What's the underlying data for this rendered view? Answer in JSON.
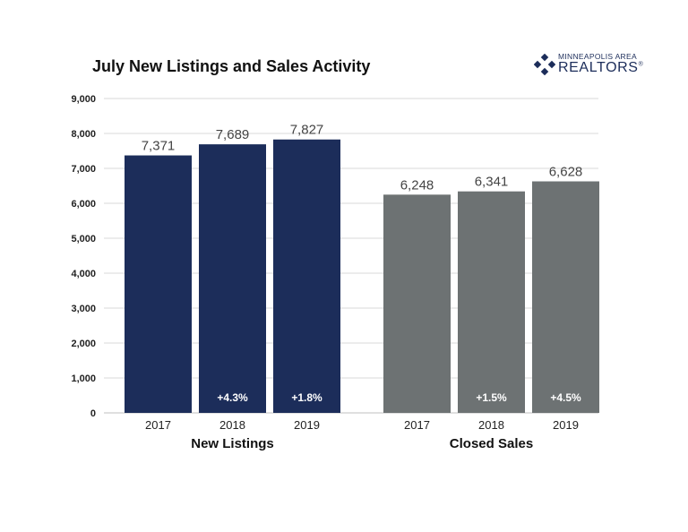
{
  "title": "July New Listings and Sales Activity",
  "logo": {
    "line1": "MINNEAPOLIS AREA",
    "line2": "REALTORS",
    "registered_mark": "®"
  },
  "colors": {
    "new_listings": "#1c2d5a",
    "closed_sales": "#6d7273",
    "grid": "#d9d9d9",
    "text": "#222222",
    "value_label": "#444444"
  },
  "chart_data": {
    "type": "bar",
    "ylim": [
      0,
      9000
    ],
    "yticks": [
      "0",
      "1,000",
      "2,000",
      "3,000",
      "4,000",
      "5,000",
      "6,000",
      "7,000",
      "8,000",
      "9,000"
    ],
    "grid": true,
    "legend": "none",
    "groups": [
      {
        "name": "New Listings",
        "color_key": "new_listings",
        "categories": [
          "2017",
          "2018",
          "2019"
        ],
        "values": [
          7371,
          7689,
          7827
        ],
        "value_labels": [
          "7,371",
          "7,689",
          "7,827"
        ],
        "change_labels": [
          "",
          "+4.3%",
          "+1.8%"
        ]
      },
      {
        "name": "Closed Sales",
        "color_key": "closed_sales",
        "categories": [
          "2017",
          "2018",
          "2019"
        ],
        "values": [
          6248,
          6341,
          6628
        ],
        "value_labels": [
          "6,248",
          "6,341",
          "6,628"
        ],
        "change_labels": [
          "",
          "+1.5%",
          "+4.5%"
        ]
      }
    ]
  }
}
